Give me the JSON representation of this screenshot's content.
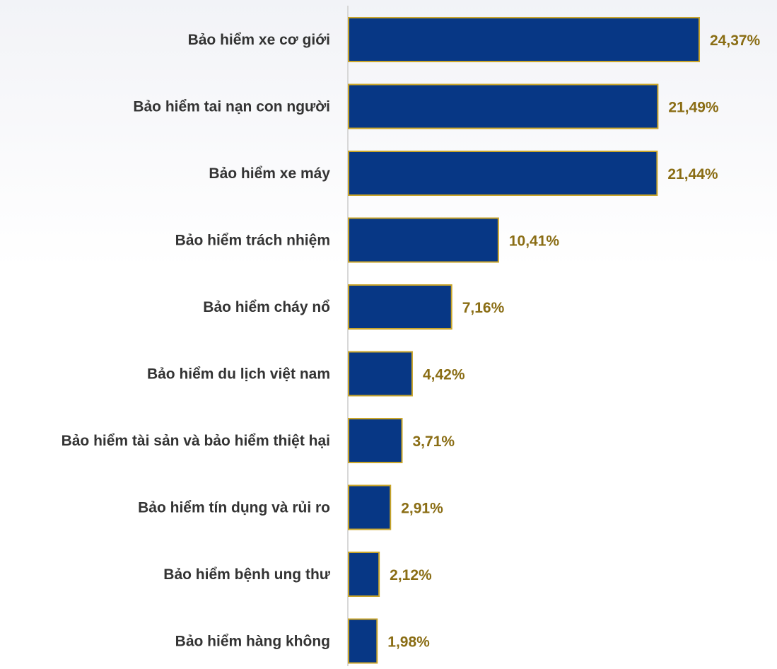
{
  "chart_data": {
    "type": "bar",
    "orientation": "horizontal",
    "categories": [
      "Bảo hiểm xe cơ giới",
      "Bảo hiểm tai nạn con người",
      "Bảo hiểm xe máy",
      "Bảo hiểm trách nhiệm",
      "Bảo hiểm cháy nổ",
      "Bảo hiểm du lịch việt nam",
      "Bảo hiểm tài sản và bảo hiểm thiệt hại",
      "Bảo hiểm tín dụng và rủi ro",
      "Bảo hiểm bệnh ung thư",
      "Bảo hiểm hàng không"
    ],
    "values": [
      24.37,
      21.49,
      21.44,
      10.41,
      7.16,
      4.42,
      3.71,
      2.91,
      2.12,
      1.98
    ],
    "value_labels": [
      "24,37%",
      "21,49%",
      "21,44%",
      "10,41%",
      "7,16%",
      "4,42%",
      "3,71%",
      "2,91%",
      "2,12%",
      "1,98%"
    ],
    "title": "",
    "xlabel": "",
    "ylabel": "",
    "xlim": [
      0,
      25
    ],
    "grid": false,
    "legend": "none",
    "colors": {
      "bar_fill": "#073785",
      "bar_border": "#c9a52a",
      "value_text": "#8a6d14",
      "axis_line": "#d8d8d8"
    }
  }
}
